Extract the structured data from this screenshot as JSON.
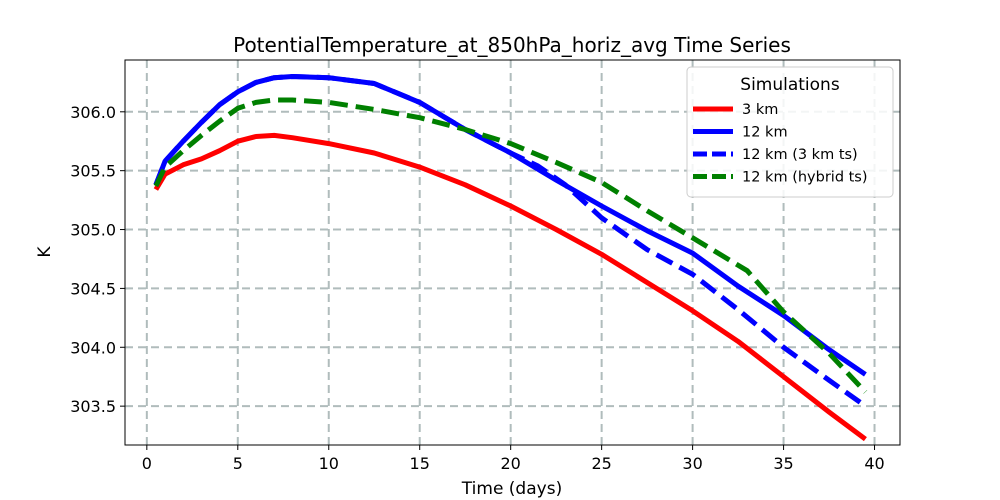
{
  "chart_data": {
    "type": "line",
    "title": "PotentialTemperature_at_850hPa_horiz_avg Time Series",
    "xlabel": "Time (days)",
    "ylabel": "K",
    "xlim": [
      -1.2,
      41.4
    ],
    "ylim": [
      303.17,
      306.44
    ],
    "xticks": [
      0,
      5,
      10,
      15,
      20,
      25,
      30,
      35,
      40
    ],
    "yticks": [
      303.5,
      304.0,
      304.5,
      305.0,
      305.5,
      306.0
    ],
    "ytick_labels": [
      "303.5",
      "304.0",
      "304.5",
      "305.0",
      "305.5",
      "306.0"
    ],
    "grid": true,
    "legend": {
      "title": "Simulations",
      "placement": "top-right"
    },
    "series": [
      {
        "name": "3 km",
        "color": "#ff0000",
        "style": "solid",
        "x": [
          0.5,
          1,
          2,
          3,
          4,
          5,
          6,
          7,
          8,
          10,
          12.5,
          15,
          17.5,
          20,
          22.5,
          25,
          27.5,
          30,
          32.5,
          35,
          37.5,
          39.5
        ],
        "y": [
          305.34,
          305.47,
          305.55,
          305.6,
          305.67,
          305.75,
          305.79,
          305.8,
          305.78,
          305.73,
          305.65,
          305.53,
          305.38,
          305.2,
          305.0,
          304.79,
          304.55,
          304.31,
          304.05,
          303.75,
          303.45,
          303.22
        ]
      },
      {
        "name": "12 km",
        "color": "#0000ff",
        "style": "solid",
        "x": [
          0.5,
          1,
          2,
          3,
          4,
          5,
          6,
          7,
          8,
          10,
          12.5,
          15,
          17.5,
          20,
          22.5,
          25,
          27.5,
          30,
          32.5,
          35,
          37.5,
          39.5
        ],
        "y": [
          305.38,
          305.58,
          305.75,
          305.91,
          306.06,
          306.17,
          306.25,
          306.29,
          306.3,
          306.29,
          306.24,
          306.08,
          305.85,
          305.65,
          305.42,
          305.2,
          304.99,
          304.8,
          304.52,
          304.27,
          303.98,
          303.77
        ]
      },
      {
        "name": "12 km (3 km ts)",
        "color": "#0000ff",
        "style": "dashed",
        "x": [
          0.5,
          1,
          2,
          3,
          4,
          5,
          6,
          7,
          8,
          10,
          12.5,
          15,
          17.5,
          20,
          21.5,
          23,
          25,
          27.5,
          30,
          32.5,
          35,
          37.5,
          39.5
        ],
        "y": [
          305.38,
          305.58,
          305.75,
          305.91,
          306.06,
          306.17,
          306.25,
          306.29,
          306.3,
          306.29,
          306.24,
          306.08,
          305.85,
          305.65,
          305.54,
          305.38,
          305.1,
          304.83,
          304.62,
          304.32,
          304.0,
          303.72,
          303.5
        ]
      },
      {
        "name": "12 km (hybrid ts)",
        "color": "#008000",
        "style": "dashed",
        "x": [
          0.5,
          1,
          2,
          3,
          4,
          5,
          6,
          7,
          8,
          10,
          12.5,
          15,
          17.5,
          20,
          22.5,
          25,
          27.5,
          30,
          33,
          35,
          37.5,
          39.5
        ],
        "y": [
          305.37,
          305.53,
          305.67,
          305.8,
          305.92,
          306.03,
          306.08,
          306.1,
          306.1,
          306.08,
          306.02,
          305.95,
          305.85,
          305.73,
          305.57,
          305.4,
          305.16,
          304.93,
          304.65,
          304.3,
          303.95,
          303.62
        ]
      }
    ]
  }
}
